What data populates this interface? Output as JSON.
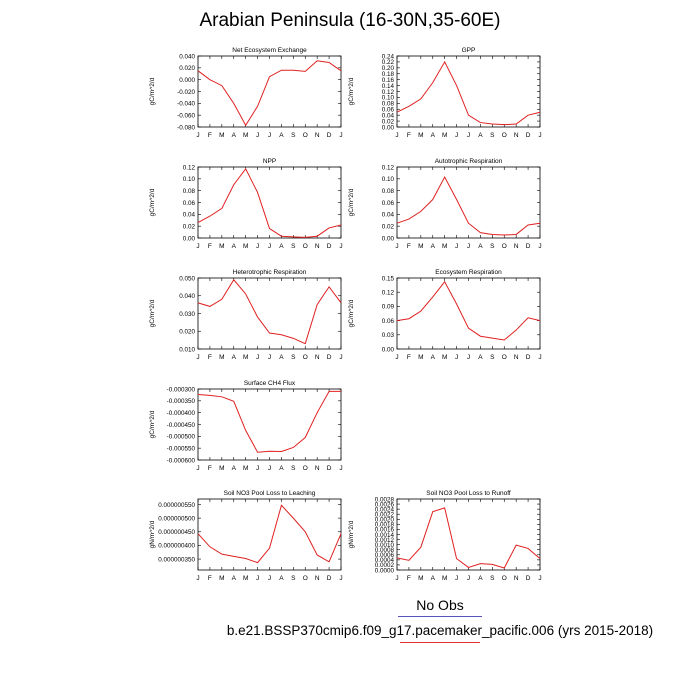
{
  "title": "Arabian Peninsula (16-30N,35-60E)",
  "legend": {
    "obs_label": "No Obs",
    "case_label": "b.e21.BSSP370cmip6.f09_g17.pacemaker_pacific.006 (yrs 2015-2018)",
    "case_color": "#e02020",
    "obs_color": "#5555bb"
  },
  "chart_data": [
    {
      "type": "line",
      "title": "Net Ecosystem Exchange",
      "ylabel": "gC/m^2/d",
      "categories": [
        "J",
        "F",
        "M",
        "A",
        "M",
        "J",
        "J",
        "A",
        "S",
        "O",
        "N",
        "D",
        "J"
      ],
      "ylim": [
        -0.08,
        0.04
      ],
      "yticks": [
        "0.040",
        "0.020",
        "0.000",
        "-0.020",
        "-0.040",
        "-0.060",
        "-0.080"
      ],
      "ytick_values": [
        0.04,
        0.02,
        0.0,
        -0.02,
        -0.04,
        -0.06,
        -0.08
      ],
      "values": [
        0.015,
        0.0,
        -0.01,
        -0.04,
        -0.077,
        -0.045,
        0.005,
        0.016,
        0.016,
        0.014,
        0.032,
        0.029,
        0.015
      ]
    },
    {
      "type": "line",
      "title": "GPP",
      "ylabel": "gC/m^2/d",
      "categories": [
        "J",
        "F",
        "M",
        "A",
        "M",
        "J",
        "J",
        "A",
        "S",
        "O",
        "N",
        "D",
        "J"
      ],
      "ylim": [
        0.0,
        0.24
      ],
      "yticks": [
        "0.24",
        "0.22",
        "0.20",
        "0.18",
        "0.16",
        "0.14",
        "0.12",
        "0.10",
        "0.08",
        "0.06",
        "0.04",
        "0.02",
        "0.00"
      ],
      "ytick_values": [
        0.24,
        0.22,
        0.2,
        0.18,
        0.16,
        0.14,
        0.12,
        0.1,
        0.08,
        0.06,
        0.04,
        0.02,
        0.0
      ],
      "values": [
        0.05,
        0.07,
        0.095,
        0.15,
        0.22,
        0.14,
        0.04,
        0.015,
        0.01,
        0.008,
        0.01,
        0.04,
        0.05
      ]
    },
    {
      "type": "line",
      "title": "NPP",
      "ylabel": "gC/m^2/d",
      "categories": [
        "J",
        "F",
        "M",
        "A",
        "M",
        "J",
        "J",
        "A",
        "S",
        "O",
        "N",
        "D",
        "J"
      ],
      "ylim": [
        0.0,
        0.12
      ],
      "yticks": [
        "0.12",
        "0.10",
        "0.08",
        "0.06",
        "0.04",
        "0.02",
        "0.00"
      ],
      "ytick_values": [
        0.12,
        0.1,
        0.08,
        0.06,
        0.04,
        0.02,
        0.0
      ],
      "values": [
        0.026,
        0.037,
        0.05,
        0.09,
        0.117,
        0.077,
        0.016,
        0.003,
        0.002,
        0.001,
        0.003,
        0.017,
        0.022
      ]
    },
    {
      "type": "line",
      "title": "Autotrophic Respiration",
      "ylabel": "gC/m^2/d",
      "categories": [
        "J",
        "F",
        "M",
        "A",
        "M",
        "J",
        "J",
        "A",
        "S",
        "O",
        "N",
        "D",
        "J"
      ],
      "ylim": [
        0.0,
        0.12
      ],
      "yticks": [
        "0.12",
        "0.10",
        "0.08",
        "0.06",
        "0.04",
        "0.02",
        "0.00"
      ],
      "ytick_values": [
        0.12,
        0.1,
        0.08,
        0.06,
        0.04,
        0.02,
        0.0
      ],
      "values": [
        0.025,
        0.032,
        0.045,
        0.065,
        0.103,
        0.065,
        0.025,
        0.009,
        0.006,
        0.005,
        0.006,
        0.022,
        0.025
      ]
    },
    {
      "type": "line",
      "title": "Heterotrophic Respiration",
      "ylabel": "gC/m^2/d",
      "categories": [
        "J",
        "F",
        "M",
        "A",
        "M",
        "J",
        "J",
        "A",
        "S",
        "O",
        "N",
        "D",
        "J"
      ],
      "ylim": [
        0.01,
        0.05
      ],
      "yticks": [
        "0.050",
        "0.040",
        "0.030",
        "0.020",
        "0.010"
      ],
      "ytick_values": [
        0.05,
        0.04,
        0.03,
        0.02,
        0.01
      ],
      "values": [
        0.036,
        0.034,
        0.038,
        0.049,
        0.041,
        0.028,
        0.019,
        0.018,
        0.016,
        0.013,
        0.035,
        0.045,
        0.036
      ]
    },
    {
      "type": "line",
      "title": "Ecosystem Respiration",
      "ylabel": "gC/m^2/d",
      "categories": [
        "J",
        "F",
        "M",
        "A",
        "M",
        "J",
        "J",
        "A",
        "S",
        "O",
        "N",
        "D",
        "J"
      ],
      "ylim": [
        0.0,
        0.15
      ],
      "yticks": [
        "0.15",
        "0.12",
        "0.09",
        "0.06",
        "0.03",
        "0.00"
      ],
      "ytick_values": [
        0.15,
        0.12,
        0.09,
        0.06,
        0.03,
        0.0
      ],
      "values": [
        0.06,
        0.064,
        0.08,
        0.11,
        0.142,
        0.095,
        0.044,
        0.027,
        0.023,
        0.019,
        0.04,
        0.066,
        0.06
      ]
    },
    {
      "type": "line",
      "title": "Surface CH4 Flux",
      "ylabel": "gC/m^2/d",
      "categories": [
        "J",
        "F",
        "M",
        "A",
        "M",
        "J",
        "J",
        "A",
        "S",
        "O",
        "N",
        "D",
        "J"
      ],
      "ylim": [
        -0.0006,
        -0.0003
      ],
      "yticks": [
        "-0.000300",
        "-0.000350",
        "-0.000400",
        "-0.000450",
        "-0.000500",
        "-0.000550",
        "-0.000600"
      ],
      "ytick_values": [
        -0.0003,
        -0.00035,
        -0.0004,
        -0.00045,
        -0.0005,
        -0.00055,
        -0.0006
      ],
      "values": [
        -0.000323,
        -0.000327,
        -0.000333,
        -0.000352,
        -0.000475,
        -0.000567,
        -0.000563,
        -0.000564,
        -0.000547,
        -0.000505,
        -0.0004,
        -0.00031,
        -0.00031
      ]
    },
    {
      "type": "line",
      "title": "Soil NO3 Pool Loss to Leaching",
      "ylabel": "gN/m^2/d",
      "categories": [
        "J",
        "F",
        "M",
        "A",
        "M",
        "J",
        "J",
        "A",
        "S",
        "O",
        "N",
        "D",
        "J"
      ],
      "ylim": [
        3.1e-07,
        5.7e-07
      ],
      "yticks": [
        "0.000000550",
        "0.000000500",
        "0.000000450",
        "0.000000400",
        "0.000000350"
      ],
      "ytick_values": [
        5.5e-07,
        5e-07,
        4.5e-07,
        4e-07,
        3.5e-07
      ],
      "values": [
        4.43e-07,
        3.95e-07,
        3.68e-07,
        3.6e-07,
        3.52e-07,
        3.37e-07,
        3.9e-07,
        5.47e-07,
        5e-07,
        4.5e-07,
        3.65e-07,
        3.4e-07,
        4.43e-07
      ]
    },
    {
      "type": "line",
      "title": "Soil NO3 Pool Loss to Runoff",
      "ylabel": "gN/m^2/d",
      "categories": [
        "J",
        "F",
        "M",
        "A",
        "M",
        "J",
        "J",
        "A",
        "S",
        "O",
        "N",
        "D",
        "J"
      ],
      "ylim": [
        0.0,
        0.0028
      ],
      "yticks": [
        "0.0028",
        "0.0026",
        "0.0024",
        "0.0022",
        "0.0020",
        "0.0018",
        "0.0016",
        "0.0014",
        "0.0012",
        "0.0010",
        "0.0008",
        "0.0006",
        "0.0004",
        "0.0002",
        "0.0000"
      ],
      "ytick_values": [
        0.0028,
        0.0026,
        0.0024,
        0.0022,
        0.002,
        0.0018,
        0.0016,
        0.0014,
        0.0012,
        0.001,
        0.0008,
        0.0006,
        0.0004,
        0.0002,
        0.0
      ],
      "values": [
        0.00048,
        0.00038,
        0.0009,
        0.0023,
        0.00245,
        0.00045,
        0.0001,
        0.00025,
        0.00022,
        8e-05,
        0.00098,
        0.00085,
        0.00045
      ]
    }
  ]
}
